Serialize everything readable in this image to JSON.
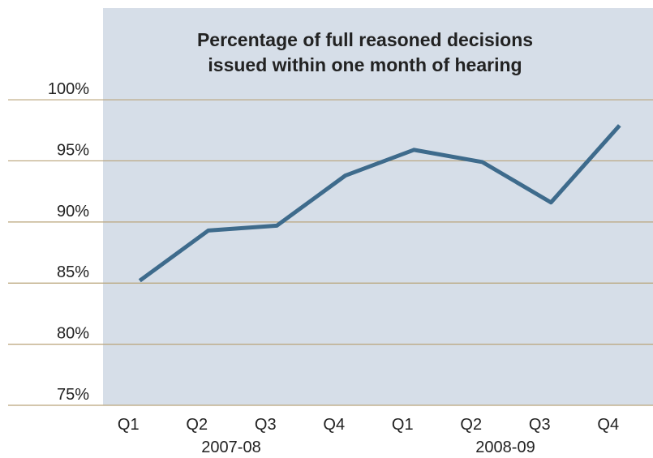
{
  "chart_data": {
    "type": "line",
    "title": [
      "Percentage of full reasoned decisions",
      "issued within one month of hearing"
    ],
    "categories": [
      "Q1",
      "Q2",
      "Q3",
      "Q4",
      "Q1",
      "Q2",
      "Q3",
      "Q4"
    ],
    "groups": [
      {
        "label": "2007-08",
        "span": [
          0,
          3
        ]
      },
      {
        "label": "2008-09",
        "span": [
          4,
          7
        ]
      }
    ],
    "series": [
      {
        "name": null,
        "color": "#3e6b8c",
        "values": [
          85.2,
          89.3,
          89.7,
          93.8,
          95.9,
          94.9,
          91.6,
          97.9
        ]
      }
    ],
    "ylim": [
      75,
      107.5
    ],
    "yticks": [
      {
        "value": 75,
        "label": "75%"
      },
      {
        "value": 80,
        "label": "80%"
      },
      {
        "value": 85,
        "label": "85%"
      },
      {
        "value": 90,
        "label": "90%"
      },
      {
        "value": 95,
        "label": "95%"
      },
      {
        "value": 100,
        "label": "100%"
      }
    ],
    "grid": true,
    "grid_color": "#b9a47a",
    "background": "#d6dee8"
  }
}
